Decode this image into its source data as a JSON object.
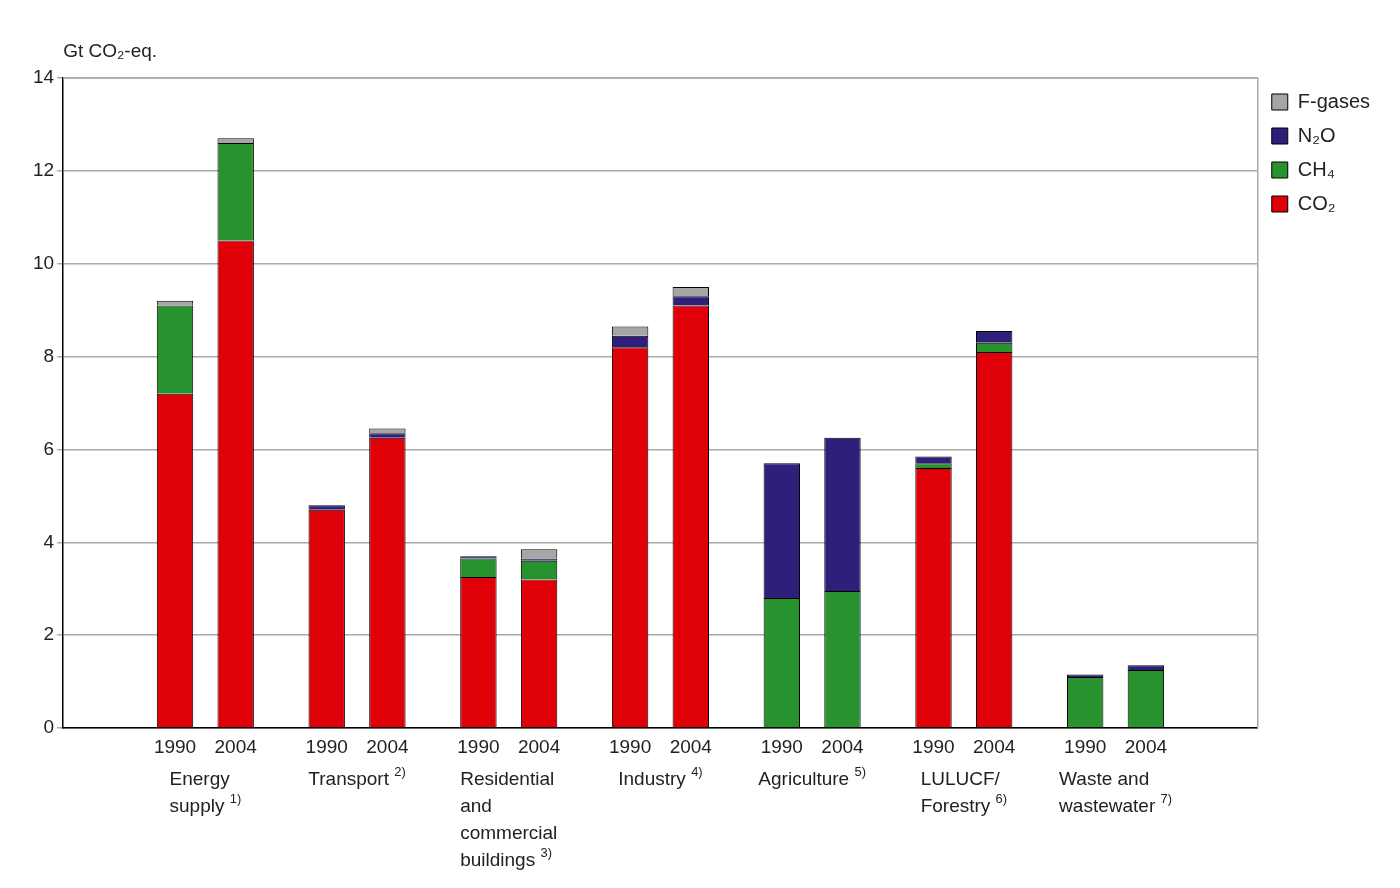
{
  "chart_data": {
    "type": "bar",
    "stacked": true,
    "ylabel": "Gt CO₂-eq.",
    "categories": [
      "1990",
      "2004",
      "1990",
      "2004",
      "1990",
      "2004",
      "1990",
      "2004",
      "1990",
      "2004",
      "1990",
      "2004",
      "1990",
      "2004"
    ],
    "annotations": [
      "Energy supply $^{1)}$",
      "Transport $^{2)}$",
      "Residential and commercial buildings $^{3)}$",
      "Industry $^{4)}$",
      "Agriculture $^{5)}$",
      "LULUCF/ Forestry $^{6)}$",
      "Waste and wastewater $^{7)}$"
    ],
    "series": [
      {
        "name": "CO₂",
        "color": "#e00007",
        "values": [
          7.2,
          10.5,
          4.7,
          6.25,
          3.25,
          3.2,
          8.2,
          9.1,
          0,
          0,
          5.6,
          8.1,
          0,
          0
        ]
      },
      {
        "name": "CH₄",
        "color": "#27922e",
        "values": [
          1.9,
          2.1,
          0,
          0,
          0.4,
          0.4,
          0,
          0,
          2.8,
          2.95,
          0.1,
          0.2,
          1.1,
          1.25
        ]
      },
      {
        "name": "N₂O",
        "color": "#2e1f7a",
        "values": [
          0,
          0,
          0.1,
          0.1,
          0.05,
          0.05,
          0.25,
          0.2,
          2.9,
          3.3,
          0.15,
          0.25,
          0.05,
          0.1
        ]
      },
      {
        "name": "F-gases",
        "color": "#a6a6a6",
        "values": [
          0.1,
          0.1,
          0,
          0.1,
          0,
          0.2,
          0.2,
          0.2,
          0,
          0,
          0,
          0,
          0,
          0
        ]
      }
    ],
    "ylim": [
      0,
      14
    ],
    "yticks": [
      0,
      2,
      4,
      6,
      8,
      10,
      12,
      14
    ],
    "grid": "y",
    "legend": "top right"
  }
}
